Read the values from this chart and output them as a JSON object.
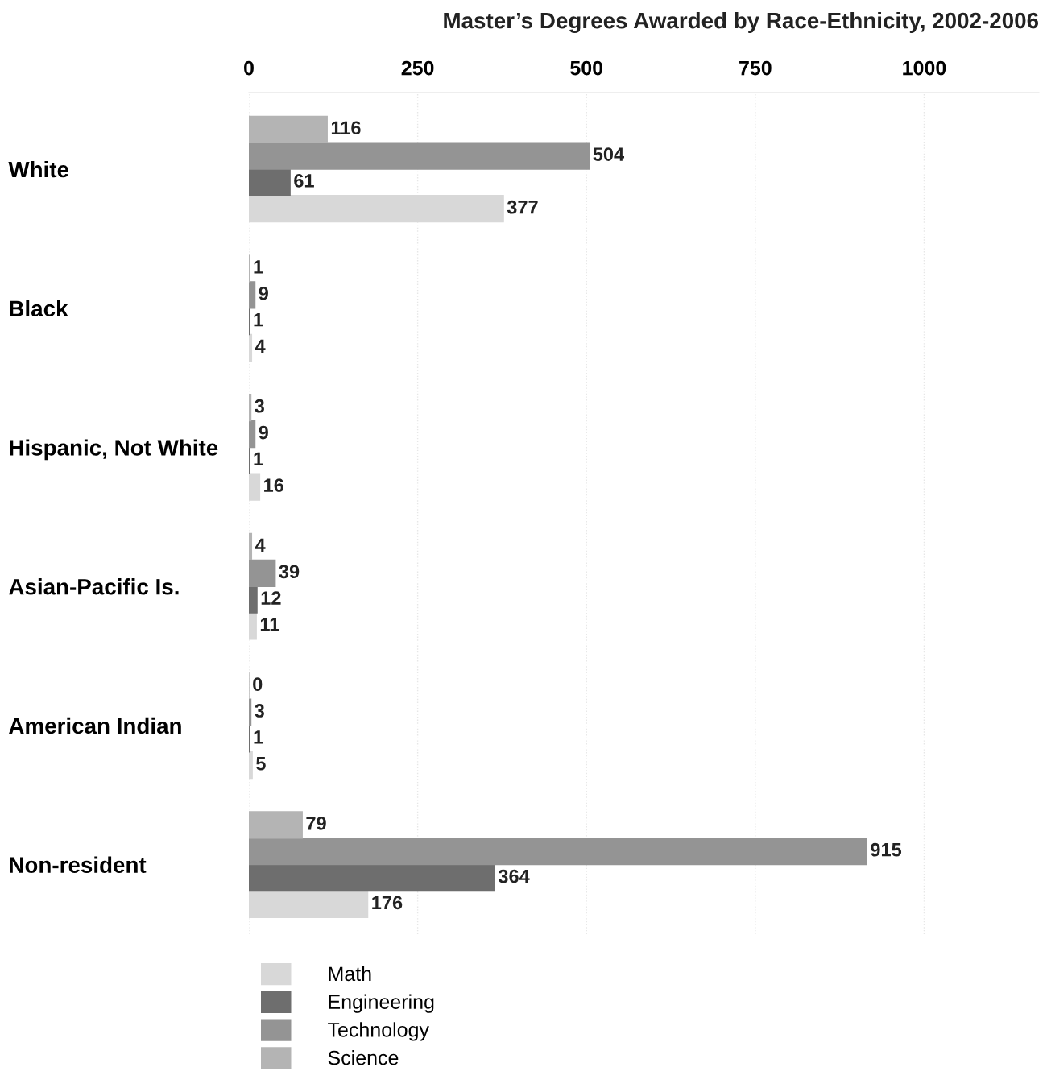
{
  "chart_data": {
    "type": "bar",
    "orientation": "horizontal",
    "title": "Master’s Degrees Awarded by Race-Ethnicity, 2002-2006",
    "categories": [
      "White",
      "Black",
      "Hispanic, Not White",
      "Asian-Pacific Is.",
      "American Indian",
      "Non-resident"
    ],
    "series": [
      {
        "name": "Math",
        "color": "#d8d8d8",
        "values": [
          377,
          4,
          16,
          11,
          5,
          176
        ]
      },
      {
        "name": "Engineering",
        "color": "#6e6e6e",
        "values": [
          61,
          1,
          1,
          12,
          1,
          364
        ]
      },
      {
        "name": "Technology",
        "color": "#949494",
        "values": [
          504,
          9,
          9,
          39,
          3,
          915
        ]
      },
      {
        "name": "Science",
        "color": "#b4b4b4",
        "values": [
          116,
          1,
          3,
          4,
          0,
          79
        ]
      }
    ],
    "xlim": [
      0,
      1170
    ],
    "xticks": [
      0,
      250,
      500,
      750,
      1000
    ],
    "grid": "x",
    "legend": "bottom left",
    "data_labels": true
  }
}
